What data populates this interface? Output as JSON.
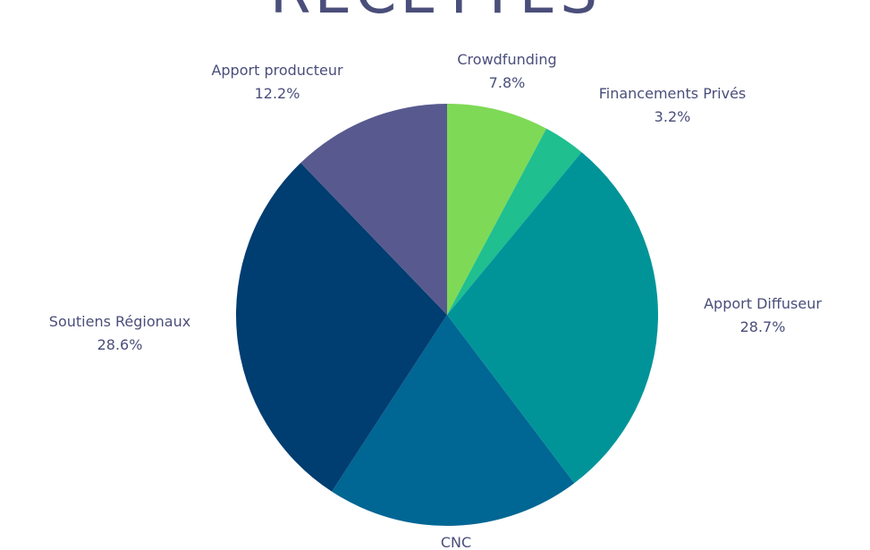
{
  "chart_data": {
    "type": "pie",
    "title": "RECETTES",
    "categories": [
      "Crowdfunding",
      "Financements Privés",
      "Apport Diffuseur",
      "CNC",
      "Soutiens Régionaux",
      "Apport producteur"
    ],
    "values": [
      7.8,
      3.2,
      28.7,
      19.5,
      28.6,
      12.2
    ],
    "value_labels": [
      "7.8%",
      "3.2%",
      "28.7%",
      null,
      "28.6%",
      "12.2%"
    ],
    "colors": [
      "#7ed957",
      "#1fbf8f",
      "#009499",
      "#006694",
      "#003d70",
      "#585a8f"
    ]
  }
}
